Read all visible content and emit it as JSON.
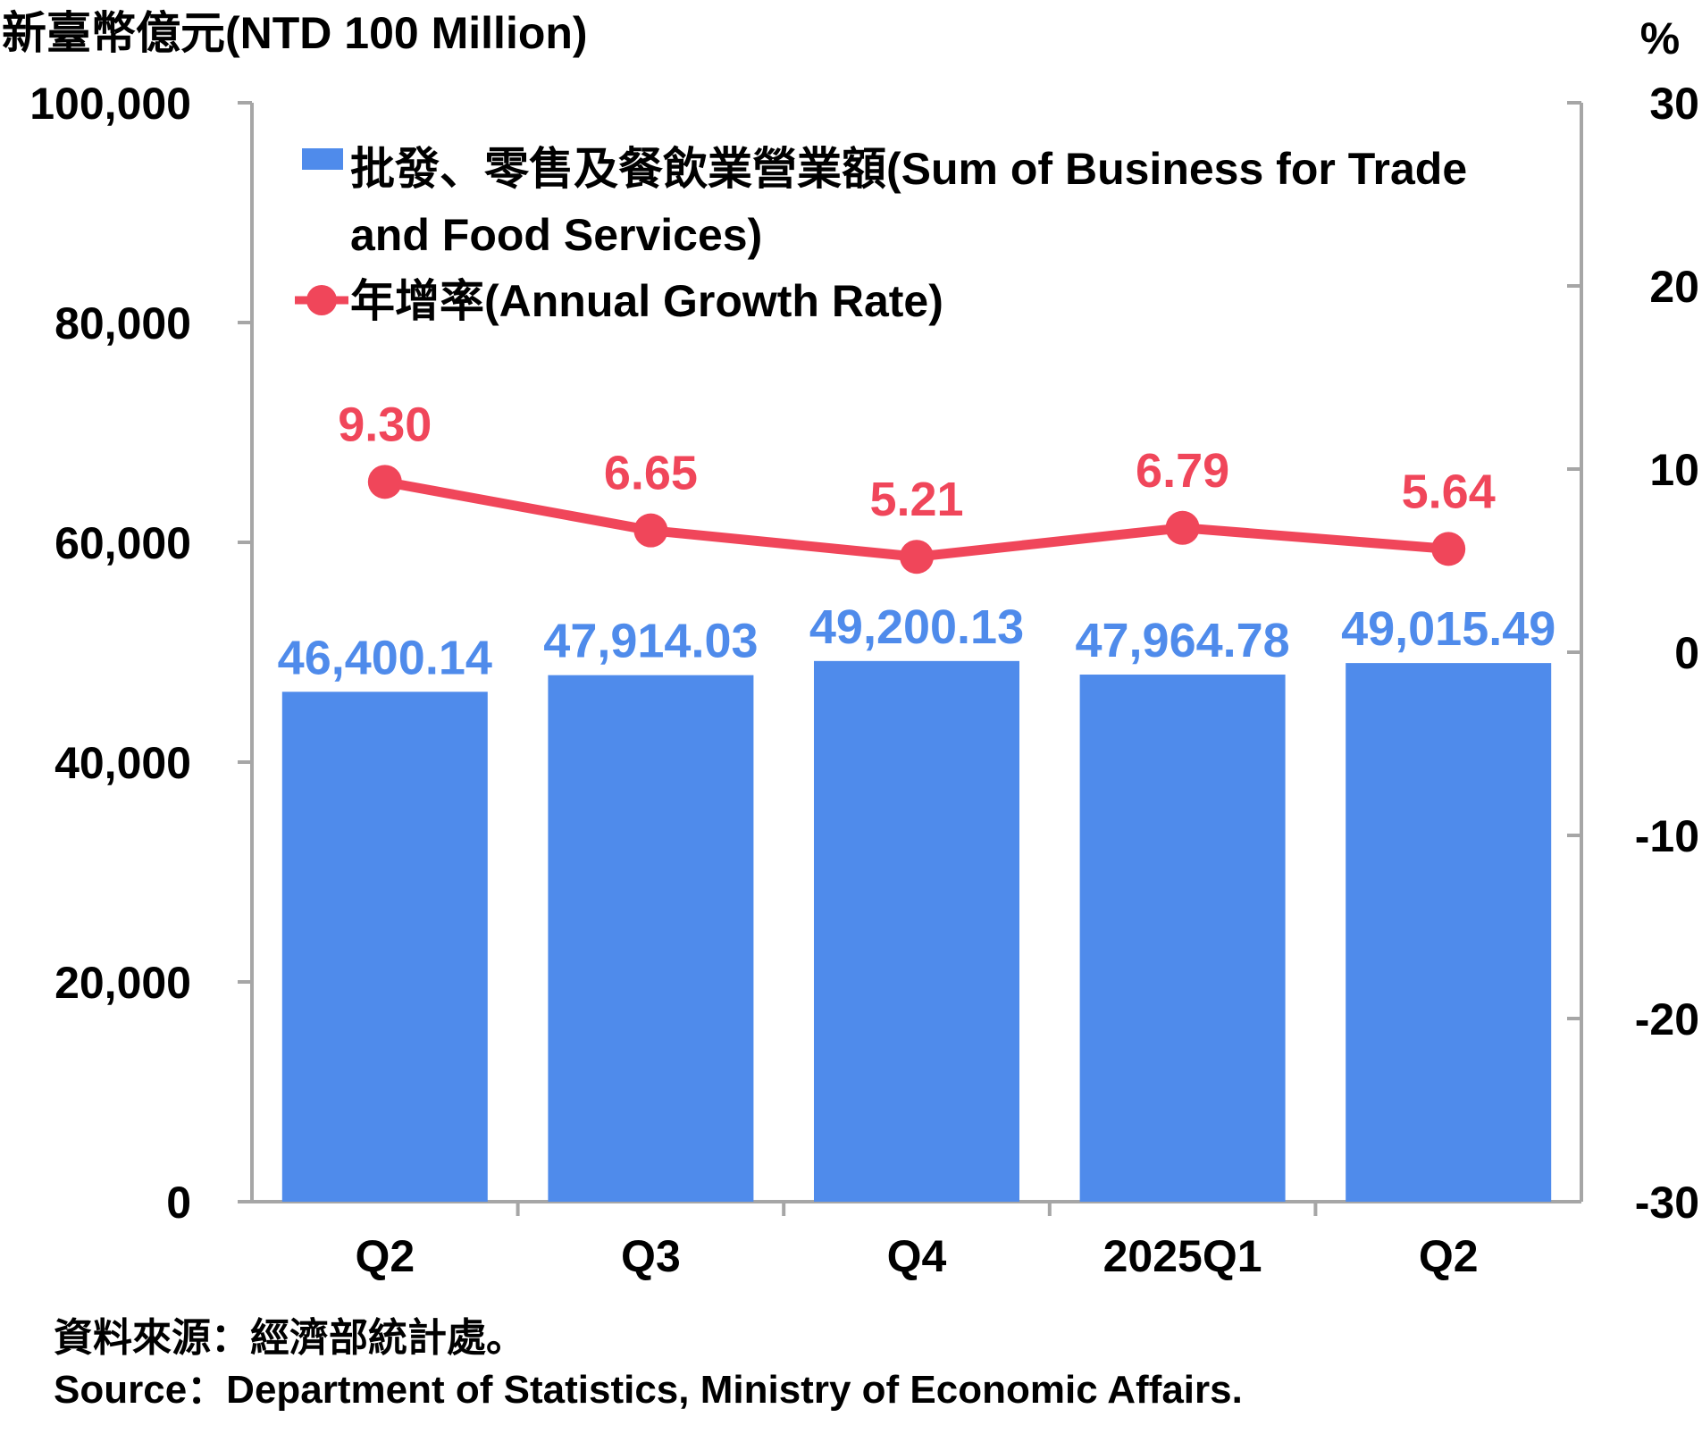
{
  "colors": {
    "bar": "#4F8BEB",
    "line": "#F0465A",
    "axis": "#A6A6A6",
    "text": "#000000"
  },
  "chart_data": {
    "type": "bar+line",
    "left_unit": "新臺幣億元(NTD 100 Million)",
    "right_unit": "%",
    "categories": [
      "Q2",
      "Q3",
      "Q4",
      "2025Q1",
      "Q2"
    ],
    "series": [
      {
        "name": "批發、零售及餐飲業營業額(Sum of Business for Trade and Food Services)",
        "legend_lines": [
          "批發、零售及餐飲業營業額(Sum of Business for Trade",
          "and Food Services)"
        ],
        "type": "bar",
        "axis": "left",
        "values": [
          46400.14,
          47914.03,
          49200.13,
          47964.78,
          49015.49
        ],
        "labels": [
          "46,400.14",
          "47,914.03",
          "49,200.13",
          "47,964.78",
          "49,015.49"
        ]
      },
      {
        "name": "年增率(Annual Growth Rate)",
        "type": "line",
        "axis": "right",
        "values": [
          9.3,
          6.65,
          5.21,
          6.79,
          5.64
        ],
        "labels": [
          "9.30",
          "6.65",
          "5.21",
          "6.79",
          "5.64"
        ]
      }
    ],
    "left_axis": {
      "min": 0,
      "max": 100000,
      "ticks": [
        0,
        20000,
        40000,
        60000,
        80000,
        100000
      ],
      "tick_labels": [
        "0",
        "20,000",
        "40,000",
        "60,000",
        "80,000",
        "100,000"
      ]
    },
    "right_axis": {
      "min": -30,
      "max": 30,
      "ticks": [
        -30,
        -20,
        -10,
        0,
        10,
        20,
        30
      ],
      "tick_labels": [
        "-30",
        "-20",
        "-10",
        "0",
        "10",
        "20",
        "30"
      ]
    }
  },
  "source": {
    "zh": "資料來源：經濟部統計處。",
    "en": "Source：Department of Statistics, Ministry of Economic Affairs."
  }
}
